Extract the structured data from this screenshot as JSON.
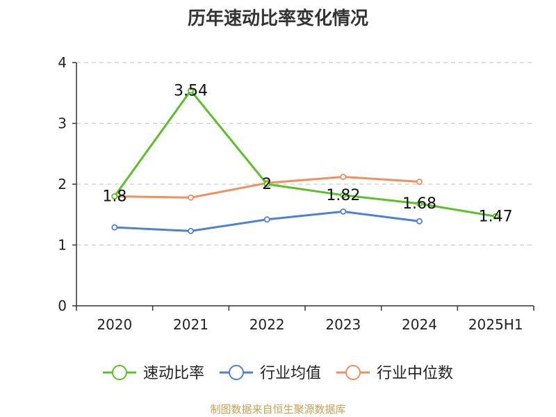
{
  "title": "历年速动比率变化情况",
  "source_note": "制图数据来自恒生聚源数据库",
  "colors": {
    "axis": "#333333",
    "grid": "#cccccc",
    "text": "#222222",
    "footer": "#c8a050"
  },
  "chart_data": {
    "type": "line",
    "categories": [
      "2020",
      "2021",
      "2022",
      "2023",
      "2024",
      "2025H1"
    ],
    "ylim": [
      0,
      4
    ],
    "yticks": [
      0,
      1,
      2,
      3,
      4
    ],
    "grid": true,
    "legend_position": "bottom",
    "series": [
      {
        "name": "速动比率",
        "color": "#5ac125",
        "values": [
          1.8,
          3.54,
          2.0,
          1.82,
          1.68,
          1.47
        ],
        "labels": [
          "1.8",
          "3.54",
          "2",
          "1.82",
          "1.68",
          "1.47"
        ]
      },
      {
        "name": "行业均值",
        "color": "#4e80d8",
        "values": [
          1.29,
          1.23,
          1.42,
          1.55,
          1.39,
          null
        ],
        "labels": []
      },
      {
        "name": "行业中位数",
        "color": "#f28e5b",
        "values": [
          1.8,
          1.78,
          2.02,
          2.12,
          2.04,
          null
        ],
        "labels": []
      }
    ]
  }
}
